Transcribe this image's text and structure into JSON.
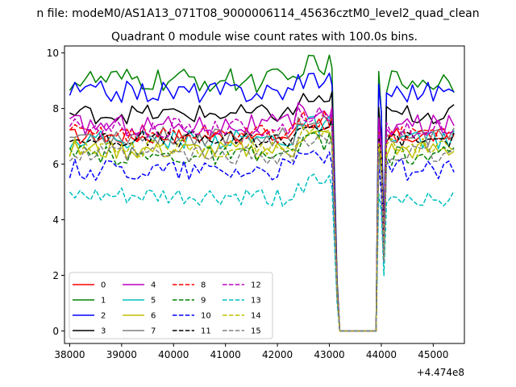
{
  "chart_data": {
    "type": "line",
    "suptitle": "n file: modeM0/AS1A13_071T08_9000006114_45636cztM0_level2_quad_clean",
    "title": "Quadrant 0 module wise count rates with 100.0s bins.",
    "xlabel": "",
    "ylabel": "",
    "offset_text": "+4.474e8",
    "xlim": [
      37900,
      45600
    ],
    "ylim": [
      -0.45,
      10.25
    ],
    "xticks": [
      38000,
      39000,
      40000,
      41000,
      42000,
      43000,
      44000,
      45000
    ],
    "yticks": [
      0,
      2,
      4,
      6,
      8,
      10
    ],
    "xtick_labels": [
      "38000",
      "39000",
      "40000",
      "41000",
      "42000",
      "43000",
      "44000",
      "45000"
    ],
    "ytick_labels": [
      "0",
      "2",
      "4",
      "6",
      "8",
      "10"
    ],
    "grid": false,
    "legend_location": "lower-left",
    "legend_columns": 4,
    "x": [
      38000,
      38100,
      38200,
      38300,
      38400,
      38500,
      38600,
      38700,
      38800,
      38900,
      39000,
      39100,
      39200,
      39300,
      39400,
      39500,
      39600,
      39700,
      39800,
      39900,
      40000,
      40100,
      40200,
      40300,
      40400,
      40500,
      40600,
      40700,
      40800,
      40900,
      41000,
      41100,
      41200,
      41300,
      41400,
      41500,
      41600,
      41700,
      41800,
      41900,
      42000,
      42100,
      42200,
      42300,
      42400,
      42500,
      42600,
      42700,
      42800,
      42900,
      43000,
      43050,
      43100,
      43150,
      43200,
      43300,
      43400,
      43500,
      43600,
      43700,
      43800,
      43900,
      43950,
      44000,
      44050,
      44100,
      44200,
      44300,
      44400,
      44500,
      44600,
      44700,
      44800,
      44900,
      45000,
      45100,
      45200,
      45300,
      45400
    ],
    "series": [
      {
        "name": "0",
        "color": "#ff0000",
        "dash": "solid",
        "level": 7.0,
        "amp": 0.3
      },
      {
        "name": "1",
        "color": "#008000",
        "dash": "solid",
        "level": 9.0,
        "amp": 0.45
      },
      {
        "name": "2",
        "color": "#0000ff",
        "dash": "solid",
        "level": 8.6,
        "amp": 0.4
      },
      {
        "name": "3",
        "color": "#000000",
        "dash": "solid",
        "level": 7.8,
        "amp": 0.35
      },
      {
        "name": "4",
        "color": "#bf00bf",
        "dash": "solid",
        "level": 7.4,
        "amp": 0.4
      },
      {
        "name": "5",
        "color": "#00bfbf",
        "dash": "solid",
        "level": 6.9,
        "amp": 0.35
      },
      {
        "name": "6",
        "color": "#bfbf00",
        "dash": "solid",
        "level": 6.5,
        "amp": 0.35
      },
      {
        "name": "7",
        "color": "#808080",
        "dash": "solid",
        "level": 7.0,
        "amp": 0.35
      },
      {
        "name": "8",
        "color": "#ff0000",
        "dash": "dashed",
        "level": 7.1,
        "amp": 0.35
      },
      {
        "name": "9",
        "color": "#008000",
        "dash": "dashed",
        "level": 6.3,
        "amp": 0.35
      },
      {
        "name": "10",
        "color": "#0000ff",
        "dash": "dashed",
        "level": 5.8,
        "amp": 0.4
      },
      {
        "name": "11",
        "color": "#000000",
        "dash": "dashed",
        "level": 6.9,
        "amp": 0.3
      },
      {
        "name": "12",
        "color": "#bf00bf",
        "dash": "dashed",
        "level": 7.3,
        "amp": 0.35
      },
      {
        "name": "13",
        "color": "#00bfbf",
        "dash": "dashed",
        "level": 4.8,
        "amp": 0.35
      },
      {
        "name": "14",
        "color": "#bfbf00",
        "dash": "dashed",
        "level": 6.6,
        "amp": 0.35
      },
      {
        "name": "15",
        "color": "#808080",
        "dash": "dashed",
        "level": 6.3,
        "amp": 0.35
      }
    ]
  }
}
